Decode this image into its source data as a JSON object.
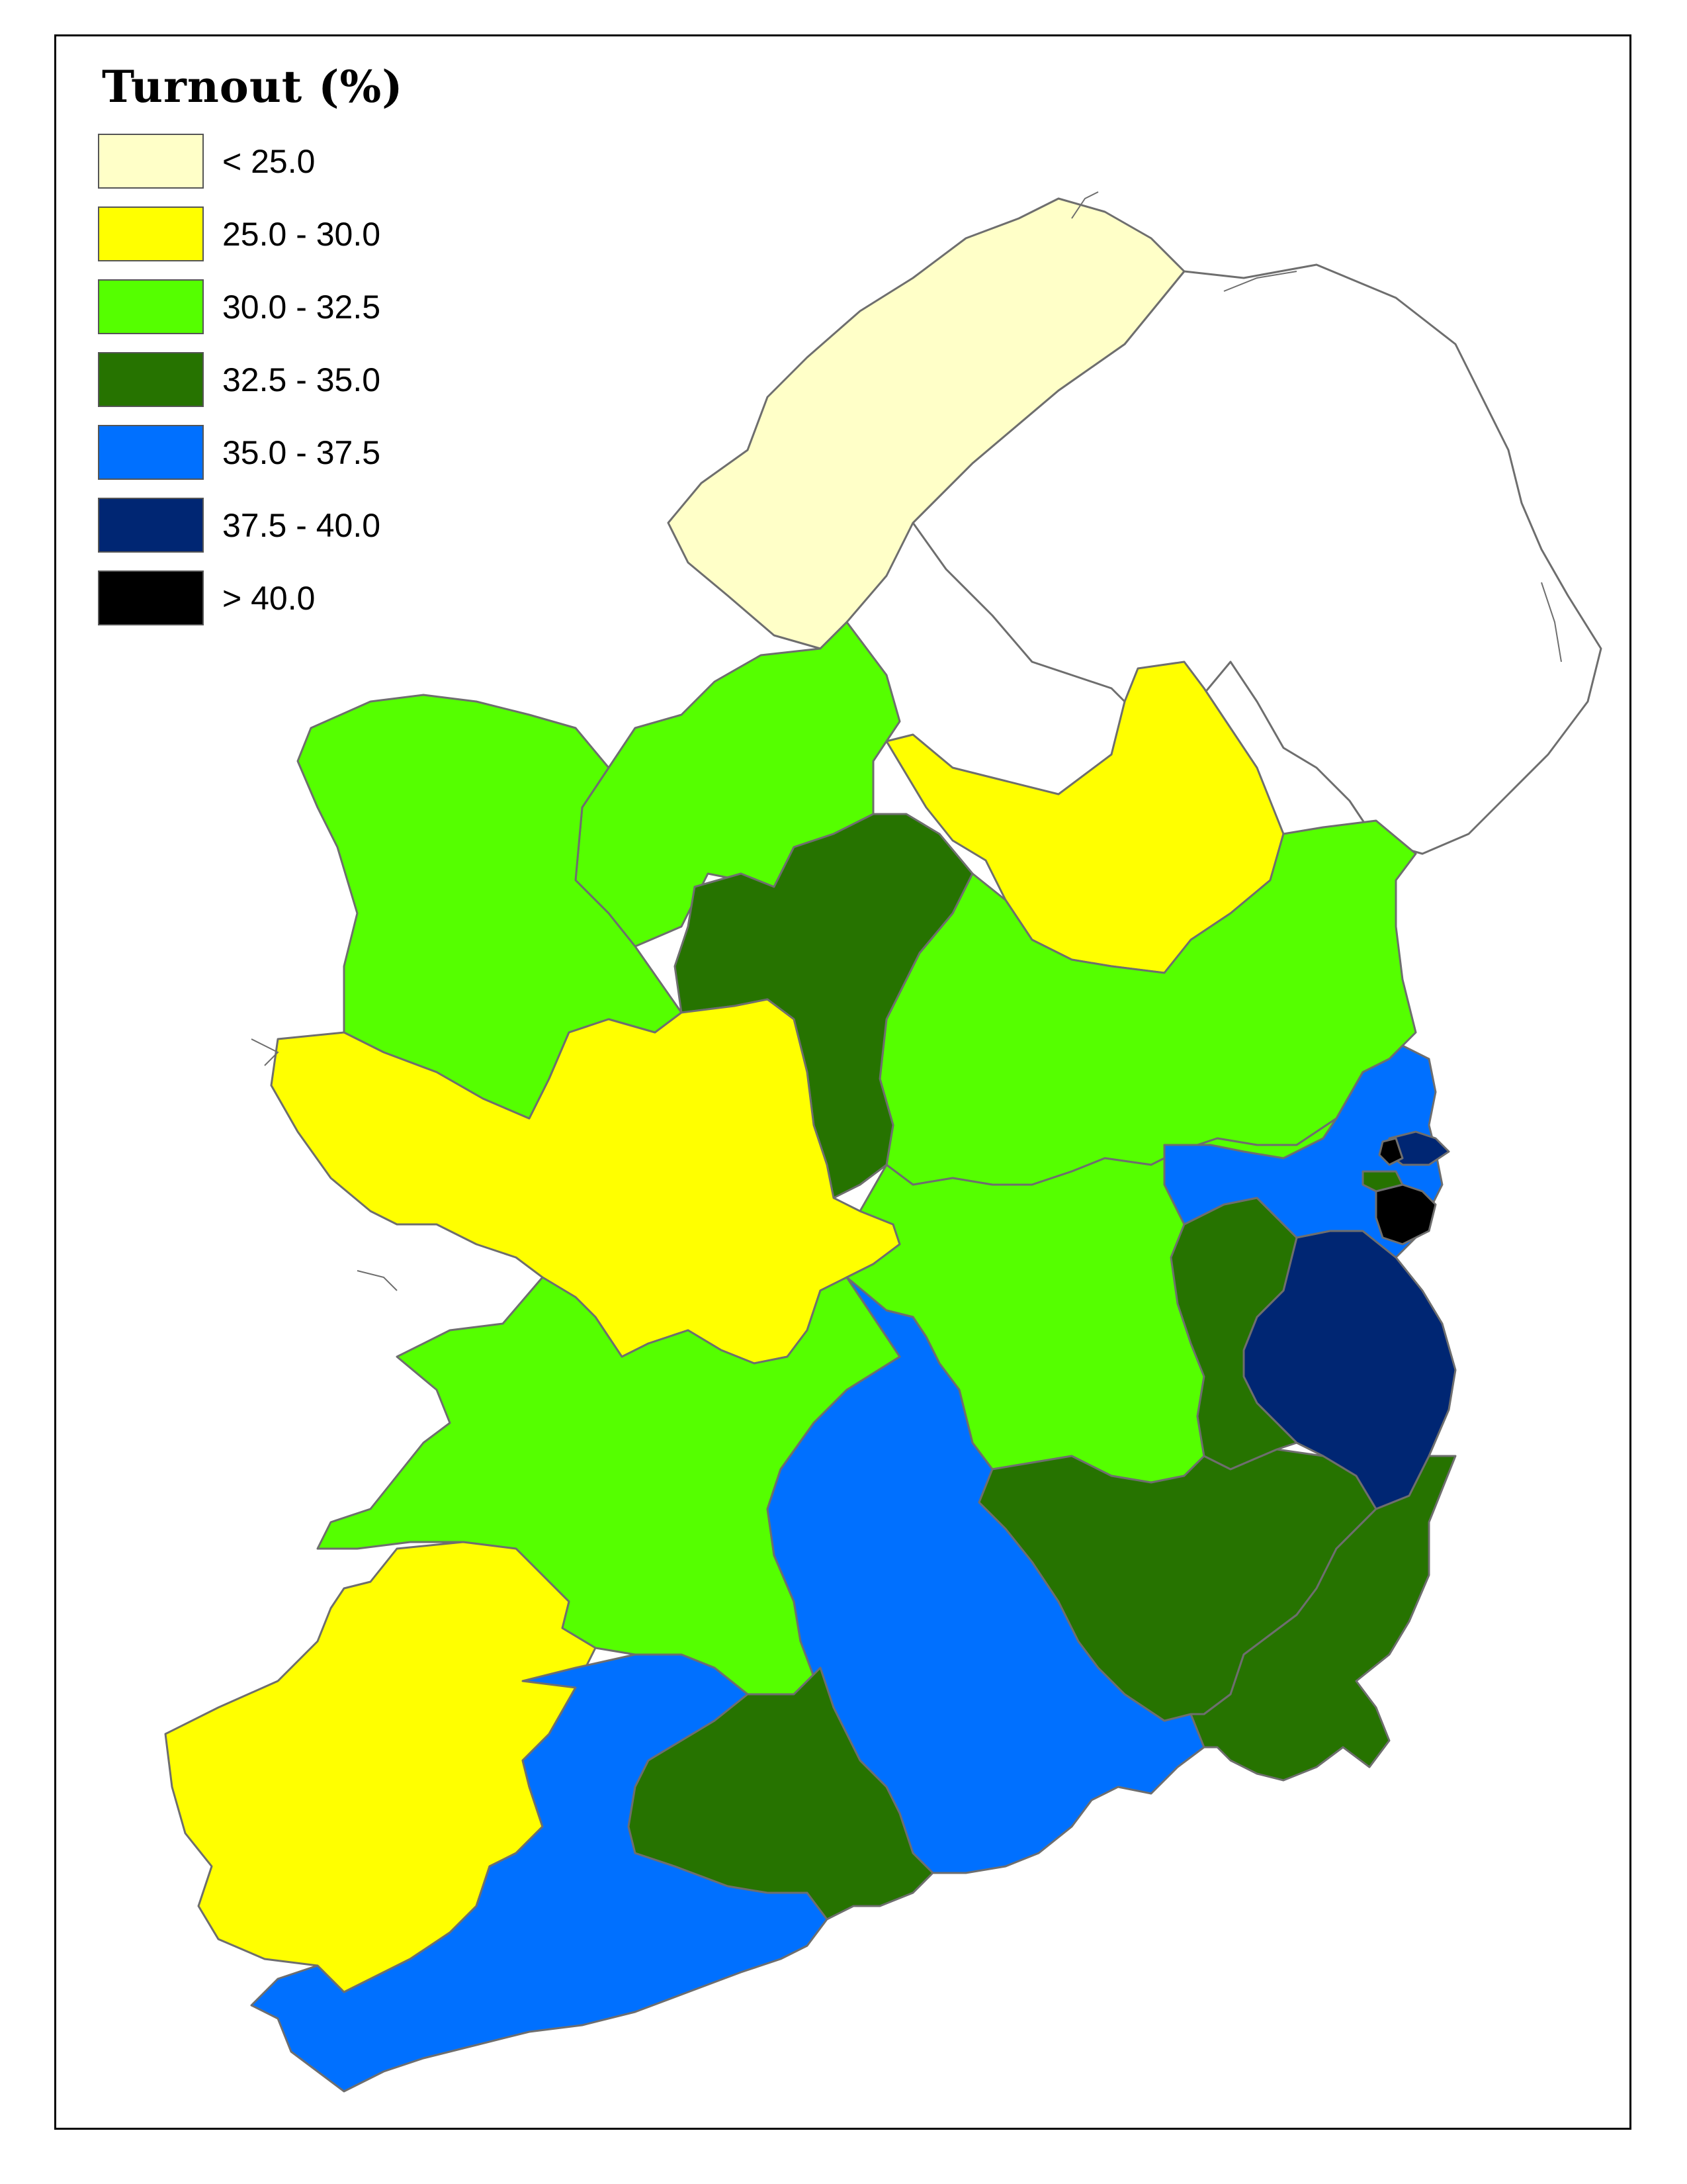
{
  "legend": {
    "title": "Turnout (%)",
    "classes": [
      {
        "label": "< 25.0",
        "color": "#FFFFC8"
      },
      {
        "label": "25.0 - 30.0",
        "color": "#FFFF00"
      },
      {
        "label": "30.0 - 32.5",
        "color": "#55FF00"
      },
      {
        "label": "32.5 - 35.0",
        "color": "#267300"
      },
      {
        "label": "35.0 - 37.5",
        "color": "#0070FF"
      },
      {
        "label": "37.5 - 40.0",
        "color": "#002673"
      },
      {
        "label": "> 40.0",
        "color": "#000000"
      }
    ]
  },
  "map": {
    "region": "Ireland",
    "northern_ireland_fill": "#FFFFFF",
    "border_color": "#6E6E6E"
  }
}
